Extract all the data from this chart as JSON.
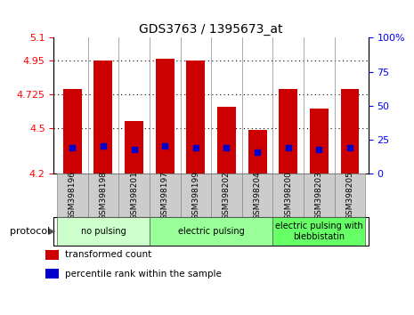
{
  "title": "GDS3763 / 1395673_at",
  "samples": [
    "GSM398196",
    "GSM398198",
    "GSM398201",
    "GSM398197",
    "GSM398199",
    "GSM398202",
    "GSM398204",
    "GSM398200",
    "GSM398203",
    "GSM398205"
  ],
  "transformed_counts": [
    4.76,
    4.95,
    4.55,
    4.96,
    4.95,
    4.64,
    4.49,
    4.76,
    4.63,
    4.76
  ],
  "percentile_ranks": [
    4.37,
    4.38,
    4.36,
    4.38,
    4.37,
    4.37,
    4.34,
    4.37,
    4.36,
    4.37
  ],
  "ylim": [
    4.2,
    5.1
  ],
  "yticks_left": [
    4.2,
    4.5,
    4.725,
    4.95,
    5.1
  ],
  "yticks_right": [
    0,
    25,
    50,
    75,
    100
  ],
  "bar_color": "#cc0000",
  "blue_marker_color": "#0000cc",
  "bg_color": "#ffffff",
  "tick_label_bg": "#cccccc",
  "protocol_groups": [
    {
      "label": "no pulsing",
      "start": 0,
      "end": 3,
      "color": "#ccffcc"
    },
    {
      "label": "electric pulsing",
      "start": 3,
      "end": 7,
      "color": "#99ff99"
    },
    {
      "label": "electric pulsing with\nblebbistatin",
      "start": 7,
      "end": 10,
      "color": "#66ff66"
    }
  ],
  "legend_labels": [
    "transformed count",
    "percentile rank within the sample"
  ],
  "legend_colors": [
    "#cc0000",
    "#0000cc"
  ],
  "bar_width": 0.6,
  "bar_bottom": 4.2,
  "xlim": [
    -0.6,
    9.6
  ]
}
